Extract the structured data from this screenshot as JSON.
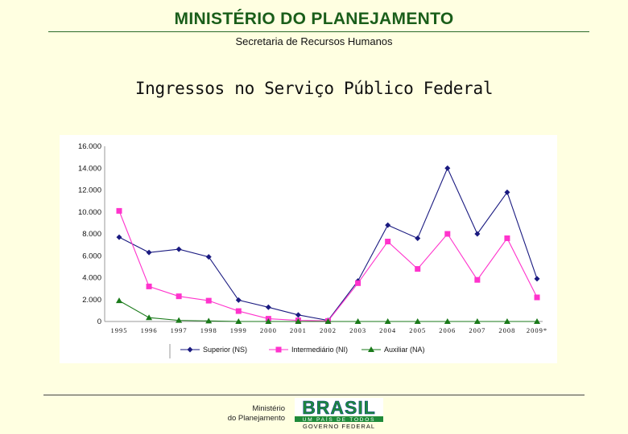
{
  "header": {
    "ministry": "MINISTÉRIO DO PLANEJAMENTO",
    "secretaria": "Secretaria de Recursos Humanos",
    "title": "Ingressos no Serviço Público Federal"
  },
  "chart_data": {
    "type": "line",
    "title": "",
    "xlabel": "",
    "ylabel": "",
    "x": [
      "1995",
      "1996",
      "1997",
      "1998",
      "1999",
      "2000",
      "2001",
      "2002",
      "2003",
      "2004",
      "2005",
      "2006",
      "2007",
      "2008",
      "2009*"
    ],
    "ylim": [
      0,
      16000
    ],
    "yticks": [
      0,
      2000,
      4000,
      6000,
      8000,
      10000,
      12000,
      14000,
      16000
    ],
    "ytick_labels": [
      "0",
      "2.000",
      "4.000",
      "6.000",
      "8.000",
      "10.000",
      "12.000",
      "14.000",
      "16.000"
    ],
    "grid": false,
    "legend_position": "bottom",
    "series": [
      {
        "name": "Superior (NS)",
        "color": "#1a1a80",
        "marker": "diamond",
        "values": [
          7700,
          6300,
          6600,
          5900,
          1950,
          1300,
          600,
          100,
          3700,
          8800,
          7600,
          14000,
          8000,
          11800,
          3900
        ]
      },
      {
        "name": "Intermediário (NI)",
        "color": "#ff33cc",
        "marker": "square",
        "values": [
          10100,
          3200,
          2300,
          1900,
          950,
          250,
          100,
          50,
          3500,
          7300,
          4800,
          8000,
          3800,
          7600,
          2200
        ]
      },
      {
        "name": "Auxiliar (NA)",
        "color": "#1a7a1a",
        "marker": "triangle",
        "values": [
          1900,
          350,
          100,
          50,
          0,
          0,
          0,
          0,
          0,
          0,
          0,
          0,
          0,
          0,
          0
        ]
      }
    ]
  },
  "footer": {
    "ministry_line1": "Ministério",
    "ministry_line2": "do Planejamento",
    "logo_word": "BRASIL",
    "logo_tagline": "UM PAÍS DE TODOS",
    "logo_gov": "GOVERNO FEDERAL"
  },
  "colors": {
    "background": "#ffffe1",
    "title_green": "#1a5e1a",
    "series_ns": "#1a1a80",
    "series_ni": "#ff33cc",
    "series_na": "#1a7a1a"
  }
}
